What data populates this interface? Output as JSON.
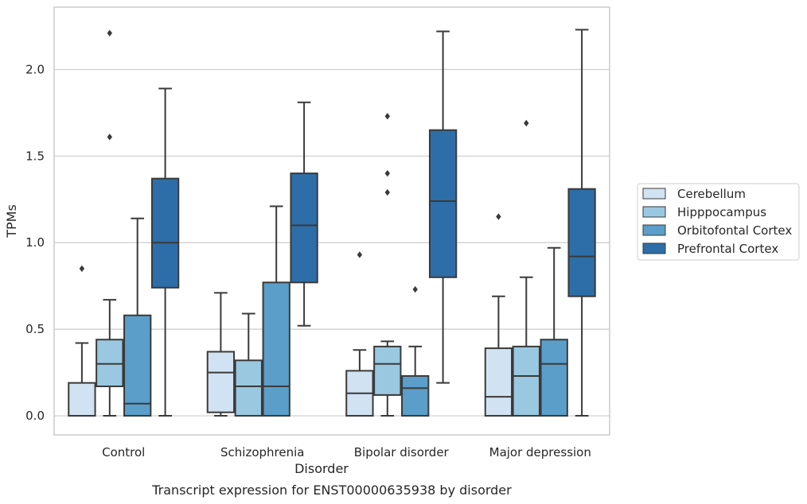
{
  "chart_data": {
    "type": "box",
    "xlabel": "Disorder",
    "ylabel": "TPMs",
    "caption": "Transcript expression for ENST00000635938 by disorder",
    "ylim": [
      -0.11,
      2.36
    ],
    "yticks": [
      "0.0",
      "0.5",
      "1.0",
      "1.5",
      "2.0"
    ],
    "grid": "horizontal",
    "legend_position": "right",
    "categories": [
      "Control",
      "Schizophrenia",
      "Bipolar disorder",
      "Major depression"
    ],
    "series": [
      {
        "name": "Cerebellum",
        "color": "#d1e2f2",
        "boxes": [
          {
            "min": 0.0,
            "q1": 0.0,
            "median": 0.0,
            "q3": 0.19,
            "max": 0.42,
            "outliers": [
              0.85
            ]
          },
          {
            "min": 0.0,
            "q1": 0.02,
            "median": 0.25,
            "q3": 0.37,
            "max": 0.71,
            "outliers": []
          },
          {
            "min": 0.0,
            "q1": 0.0,
            "median": 0.13,
            "q3": 0.26,
            "max": 0.38,
            "outliers": [
              0.93
            ]
          },
          {
            "min": 0.0,
            "q1": 0.0,
            "median": 0.11,
            "q3": 0.39,
            "max": 0.69,
            "outliers": [
              1.15
            ]
          }
        ]
      },
      {
        "name": "Hipppocampus",
        "color": "#9ac8e0",
        "boxes": [
          {
            "min": 0.0,
            "q1": 0.17,
            "median": 0.3,
            "q3": 0.44,
            "max": 0.67,
            "outliers": [
              1.61,
              2.21
            ]
          },
          {
            "min": 0.0,
            "q1": 0.0,
            "median": 0.17,
            "q3": 0.32,
            "max": 0.59,
            "outliers": []
          },
          {
            "min": 0.0,
            "q1": 0.12,
            "median": 0.3,
            "q3": 0.4,
            "max": 0.43,
            "outliers": [
              1.29,
              1.4,
              1.73
            ]
          },
          {
            "min": 0.0,
            "q1": 0.0,
            "median": 0.23,
            "q3": 0.4,
            "max": 0.8,
            "outliers": [
              1.69
            ]
          }
        ]
      },
      {
        "name": "Orbitofontal Cortex",
        "color": "#5a9ec9",
        "boxes": [
          {
            "min": 0.0,
            "q1": 0.0,
            "median": 0.07,
            "q3": 0.58,
            "max": 1.14,
            "outliers": []
          },
          {
            "min": 0.0,
            "q1": 0.0,
            "median": 0.17,
            "q3": 0.77,
            "max": 1.21,
            "outliers": []
          },
          {
            "min": 0.0,
            "q1": 0.0,
            "median": 0.16,
            "q3": 0.23,
            "max": 0.4,
            "outliers": [
              0.73
            ]
          },
          {
            "min": 0.0,
            "q1": 0.0,
            "median": 0.3,
            "q3": 0.44,
            "max": 0.97,
            "outliers": []
          }
        ]
      },
      {
        "name": "Prefrontal Cortex",
        "color": "#2d6ea8",
        "boxes": [
          {
            "min": 0.0,
            "q1": 0.74,
            "median": 1.0,
            "q3": 1.37,
            "max": 1.89,
            "outliers": []
          },
          {
            "min": 0.52,
            "q1": 0.77,
            "median": 1.1,
            "q3": 1.4,
            "max": 1.81,
            "outliers": []
          },
          {
            "min": 0.19,
            "q1": 0.8,
            "median": 1.24,
            "q3": 1.65,
            "max": 2.22,
            "outliers": []
          },
          {
            "min": 0.0,
            "q1": 0.69,
            "median": 0.92,
            "q3": 1.31,
            "max": 2.23,
            "outliers": []
          }
        ]
      }
    ]
  }
}
